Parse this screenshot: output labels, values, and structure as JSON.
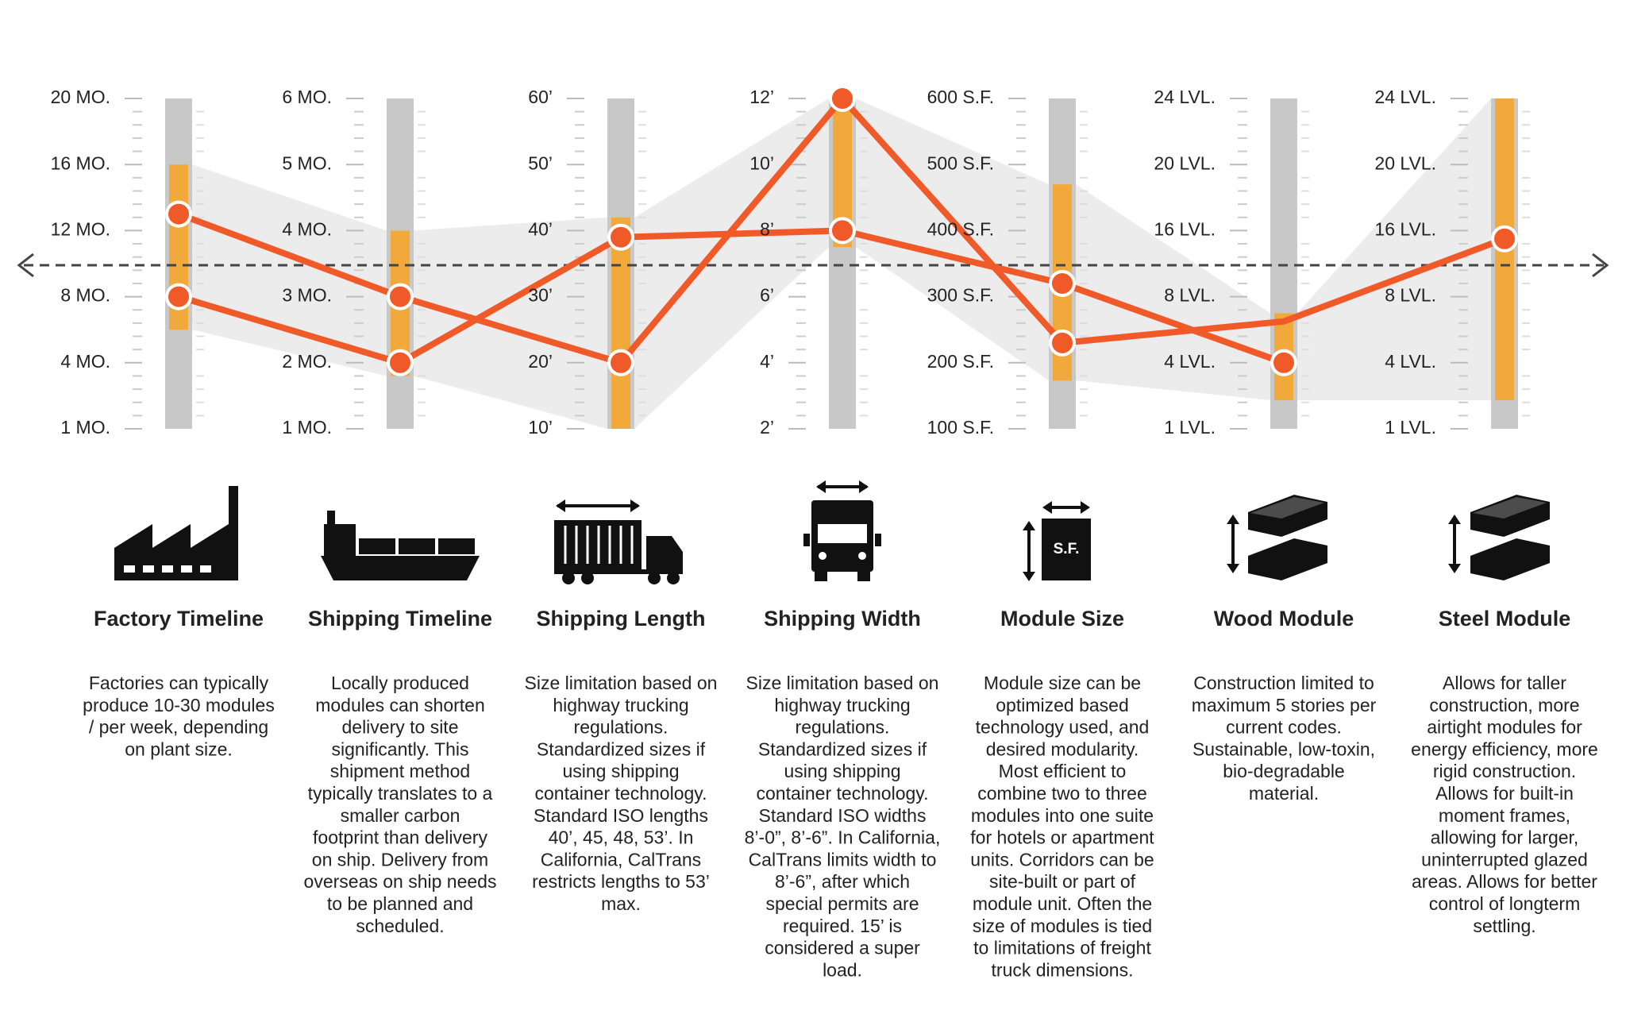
{
  "columns": [
    {
      "title": "Factory Timeline",
      "description": [
        "Factories can typically",
        "produce 10-30 modules",
        "/ per week, depending",
        "on plant size."
      ],
      "ticks": [
        {
          "value": 1,
          "label": "1 MO."
        },
        {
          "value": 4,
          "label": "4 MO."
        },
        {
          "value": 8,
          "label": "8 MO."
        },
        {
          "value": 12,
          "label": "12 MO."
        },
        {
          "value": 16,
          "label": "16 MO."
        },
        {
          "value": 20,
          "label": "20 MO."
        }
      ],
      "range": [
        6,
        16
      ],
      "points": [
        13,
        8
      ]
    },
    {
      "title": "Shipping Timeline",
      "description": [
        "Locally produced",
        "modules can shorten",
        "delivery to site",
        "significantly. This",
        "shipment method",
        "typically translates to a",
        "smaller carbon",
        "footprint than delivery",
        "on ship.  Delivery from",
        "overseas on ship needs",
        "to be planned and",
        "scheduled."
      ],
      "ticks": [
        {
          "value": 1,
          "label": "1 MO."
        },
        {
          "value": 2,
          "label": "2 MO."
        },
        {
          "value": 3,
          "label": "3 MO."
        },
        {
          "value": 4,
          "label": "4 MO."
        },
        {
          "value": 5,
          "label": "5 MO."
        },
        {
          "value": 6,
          "label": "6 MO."
        }
      ],
      "range": [
        1.8,
        4
      ],
      "points": [
        3,
        2
      ]
    },
    {
      "title": "Shipping Length",
      "description": [
        "Size limitation based on",
        "highway trucking",
        "regulations.",
        "Standardized sizes if",
        "using shipping",
        "container technology.",
        "Standard ISO lengths",
        "40’, 45, 48, 53’. In",
        "California, CalTrans",
        "restricts lengths to 53’",
        "max."
      ],
      "ticks": [
        {
          "value": 10,
          "label": "10’"
        },
        {
          "value": 20,
          "label": "20’"
        },
        {
          "value": 30,
          "label": "30’"
        },
        {
          "value": 40,
          "label": "40’"
        },
        {
          "value": 50,
          "label": "50’"
        },
        {
          "value": 60,
          "label": "60’"
        }
      ],
      "range": [
        10,
        42
      ],
      "points": [
        39,
        20
      ]
    },
    {
      "title": "Shipping Width",
      "description": [
        "Size limitation based on",
        "highway trucking",
        "regulations.",
        "Standardized sizes if",
        "using shipping",
        "container technology.",
        "Standard ISO widths",
        "8’-0”, 8’-6”. In California,",
        "CalTrans limits width to",
        "8’-6”, after which",
        "special permits are",
        "required.  15’ is",
        "considered a super",
        "load."
      ],
      "ticks": [
        {
          "value": 2,
          "label": "2’"
        },
        {
          "value": 4,
          "label": "4’"
        },
        {
          "value": 6,
          "label": "6’"
        },
        {
          "value": 8,
          "label": "8’"
        },
        {
          "value": 10,
          "label": "10’"
        },
        {
          "value": 12,
          "label": "12’"
        }
      ],
      "range": [
        7.5,
        12
      ],
      "points": [
        12,
        8
      ]
    },
    {
      "title": "Module Size",
      "description": [
        "Module size can be",
        "optimized based",
        "technology used, and",
        "desired modularity.",
        "Most efficient to",
        "combine two to three",
        "modules into one suite",
        "for hotels or apartment",
        "units. Corridors  can be",
        "site-built or part of",
        "module unit. Often the",
        "size of modules is tied",
        "to limitations of freight",
        "truck dimensions."
      ],
      "ticks": [
        {
          "value": 100,
          "label": "100 S.F."
        },
        {
          "value": 200,
          "label": "200 S.F."
        },
        {
          "value": 300,
          "label": "300 S.F."
        },
        {
          "value": 400,
          "label": "400 S.F."
        },
        {
          "value": 500,
          "label": "500 S.F."
        },
        {
          "value": 600,
          "label": "600 S.F."
        }
      ],
      "range": [
        173,
        470
      ],
      "points": [
        320,
        230
      ]
    },
    {
      "title": "Wood Module",
      "description": [
        "Construction limited to",
        "maximum 5 stories per",
        "current codes.",
        "Sustainable,  low-toxin,",
        "bio-degradable",
        "material."
      ],
      "ticks": [
        {
          "value": 1,
          "label": "1 LVL."
        },
        {
          "value": 4,
          "label": "4 LVL."
        },
        {
          "value": 8,
          "label": "8 LVL."
        },
        {
          "value": 16,
          "label": "16 LVL."
        },
        {
          "value": 20,
          "label": "20 LVL."
        },
        {
          "value": 24,
          "label": "24 LVL."
        }
      ],
      "range": [
        2.3,
        7
      ],
      "points": [
        4
      ]
    },
    {
      "title": "Steel Module",
      "description": [
        "Allows for taller",
        "construction, more",
        "airtight modules for",
        "energy efficiency, more",
        "rigid construction.",
        "Allows for built-in",
        "moment frames,",
        "allowing for larger,",
        "uninterrupted glazed",
        "areas. Allows for better",
        "control of longterm",
        "settling."
      ],
      "ticks": [
        {
          "value": 1,
          "label": "1 LVL."
        },
        {
          "value": 4,
          "label": "4 LVL."
        },
        {
          "value": 8,
          "label": "8 LVL."
        },
        {
          "value": 16,
          "label": "16 LVL."
        },
        {
          "value": 20,
          "label": "20 LVL."
        },
        {
          "value": 24,
          "label": "24 LVL."
        }
      ],
      "range": [
        2.3,
        24
      ],
      "points": [
        15
      ]
    }
  ],
  "lines": [
    [
      13,
      3,
      20,
      12,
      230,
      6.5,
      15
    ],
    [
      8,
      2,
      39,
      8,
      320,
      4,
      null
    ]
  ],
  "module_icon_label": "S.F."
}
